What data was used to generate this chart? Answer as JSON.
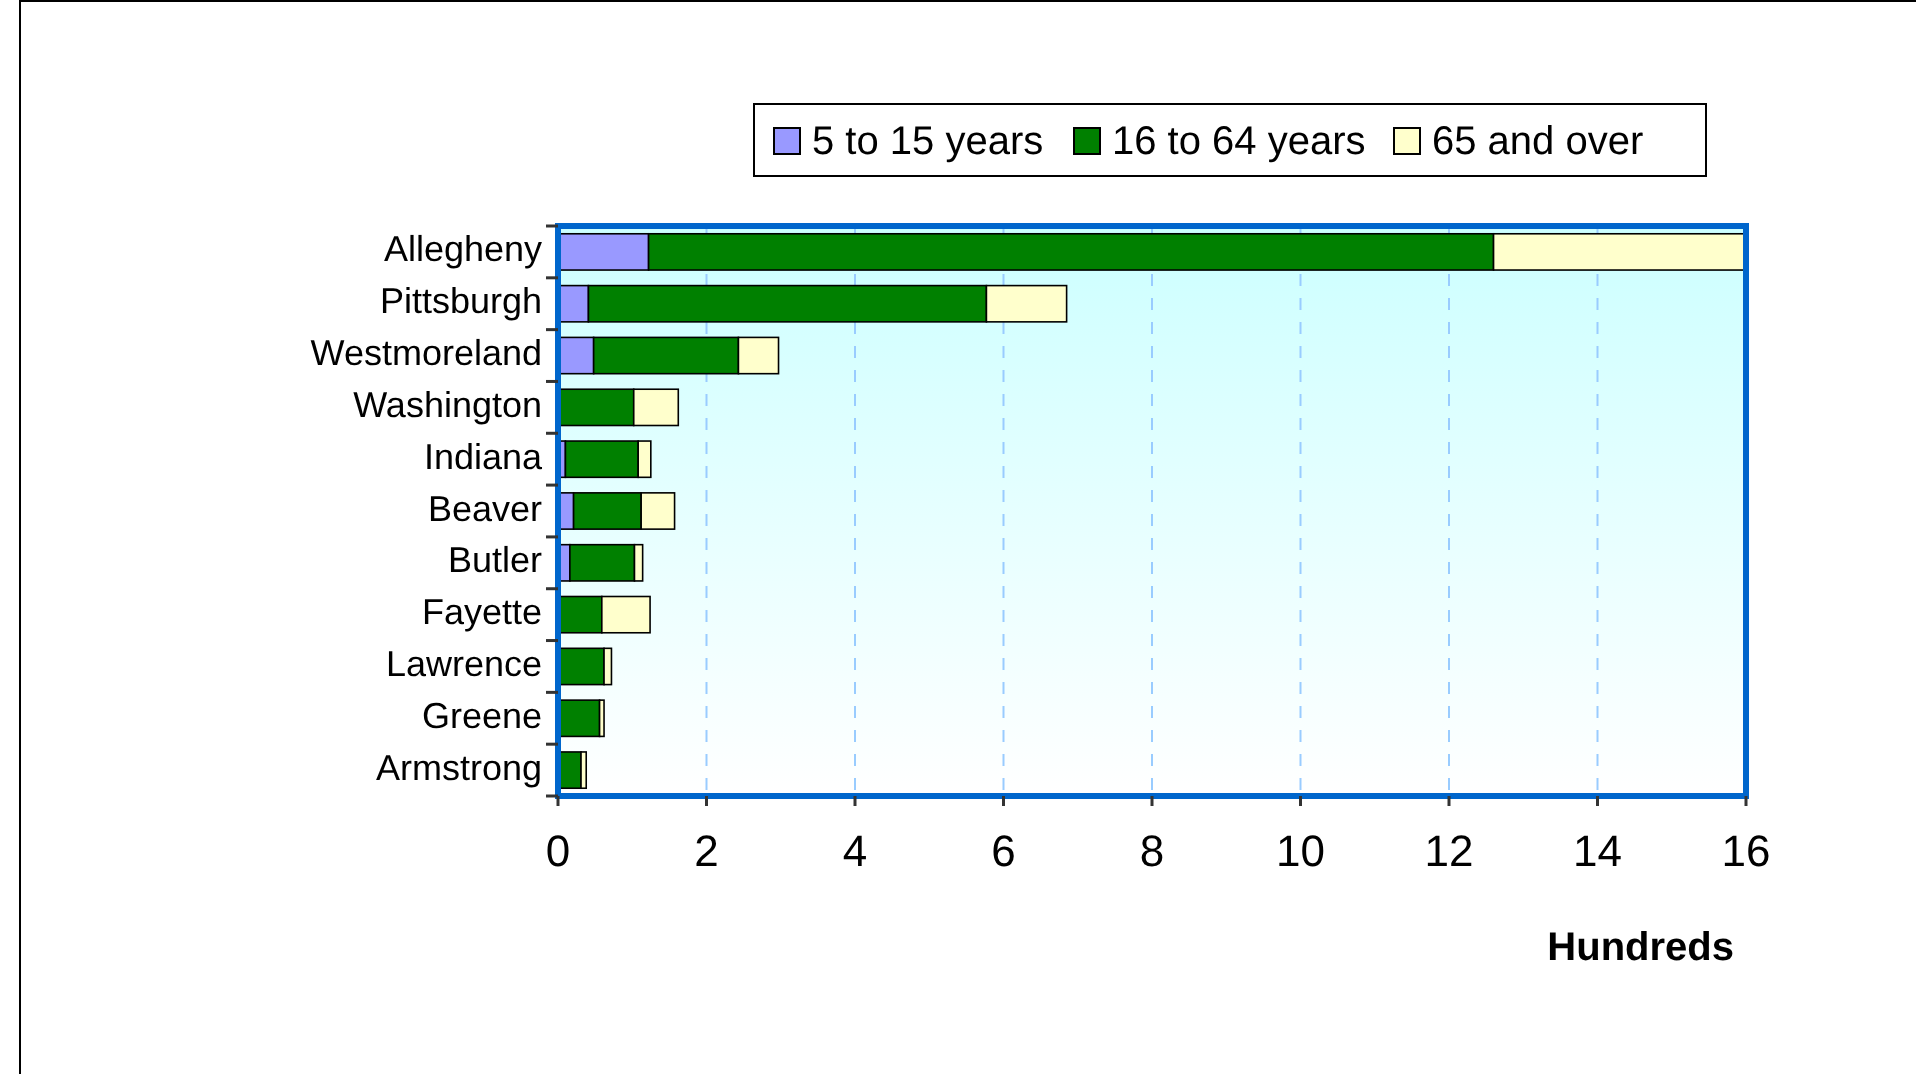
{
  "chart_data": {
    "type": "bar",
    "orientation": "horizontal",
    "stacked": true,
    "xlabel": "Hundreds",
    "categories": [
      "Allegheny",
      "Pittsburgh",
      "Westmoreland",
      "Washington",
      "Indiana",
      "Beaver",
      "Butler",
      "Fayette",
      "Lawrence",
      "Greene",
      "Armstrong"
    ],
    "series": [
      {
        "name": "5 to 15 years",
        "color": "#9999ff",
        "values": [
          1.22,
          0.41,
          0.48,
          0,
          0.1,
          0.21,
          0.16,
          0,
          null,
          null,
          0
        ]
      },
      {
        "name": "16 to 64 years",
        "color": "#008000",
        "values": [
          11.38,
          5.36,
          1.95,
          1.02,
          0.98,
          0.91,
          0.87,
          0.59,
          0.62,
          0.56,
          0.31
        ]
      },
      {
        "name": "65 and over",
        "color": "#ffffcc",
        "values": [
          3.4,
          1.08,
          0.54,
          0.6,
          0.17,
          0.45,
          0.11,
          0.65,
          0.1,
          0.06,
          0.07
        ]
      }
    ],
    "xlim": [
      0,
      16
    ],
    "xticks": [
      0,
      2,
      4,
      6,
      8,
      10,
      12,
      14,
      16
    ],
    "grid": "x",
    "legend": "top"
  }
}
